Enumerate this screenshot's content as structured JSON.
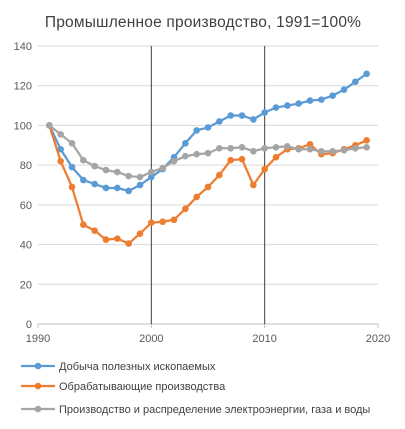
{
  "chart_data": {
    "type": "line",
    "title": "Промышленное  производство,  1991=100%",
    "x": [
      1991,
      1992,
      1993,
      1994,
      1995,
      1996,
      1997,
      1998,
      1999,
      2000,
      2001,
      2002,
      2003,
      2004,
      2005,
      2006,
      2007,
      2008,
      2009,
      2010,
      2011,
      2012,
      2013,
      2014,
      2015,
      2016,
      2017,
      2018,
      2019
    ],
    "xlim": [
      1990,
      2020
    ],
    "xticks": [
      "1990",
      "2000",
      "2010",
      "2020"
    ],
    "ylim": [
      0,
      140
    ],
    "yticks": [
      "0",
      "20",
      "40",
      "60",
      "80",
      "100",
      "120",
      "140"
    ],
    "vertical_lines": [
      2000,
      2010
    ],
    "grid": "horizontal",
    "legend_position": "bottom",
    "series": [
      {
        "name": "Добыча полезных ископаемых",
        "color": "#5b9bd5",
        "values": [
          100,
          88,
          79,
          72.5,
          70.5,
          68.5,
          68.5,
          67,
          70,
          74,
          78,
          84,
          91,
          97.5,
          99,
          102,
          105,
          105,
          103,
          106.5,
          109,
          110,
          111,
          112.5,
          113,
          115,
          118,
          122,
          126
        ]
      },
      {
        "name": "Обрабатывающие производства",
        "color": "#ed7d31",
        "values": [
          100,
          82,
          69,
          50,
          47,
          42.5,
          43,
          40.5,
          45.5,
          51,
          51.5,
          52.5,
          58,
          64,
          69,
          75,
          82.5,
          83,
          70,
          78,
          84,
          88,
          88.5,
          90.5,
          85.5,
          86,
          88,
          90,
          92.5
        ]
      },
      {
        "name": "Производство и распределение электроэнергии, газа и воды",
        "color": "#a5a5a5",
        "values": [
          100,
          95.5,
          91,
          82.5,
          79.5,
          77.5,
          76.5,
          74.5,
          74,
          76.5,
          78.5,
          82,
          84.5,
          85.5,
          86,
          88.5,
          88.5,
          89,
          87,
          88.5,
          89,
          89.5,
          88,
          88,
          87,
          87,
          87.5,
          88.5,
          89
        ]
      }
    ]
  }
}
